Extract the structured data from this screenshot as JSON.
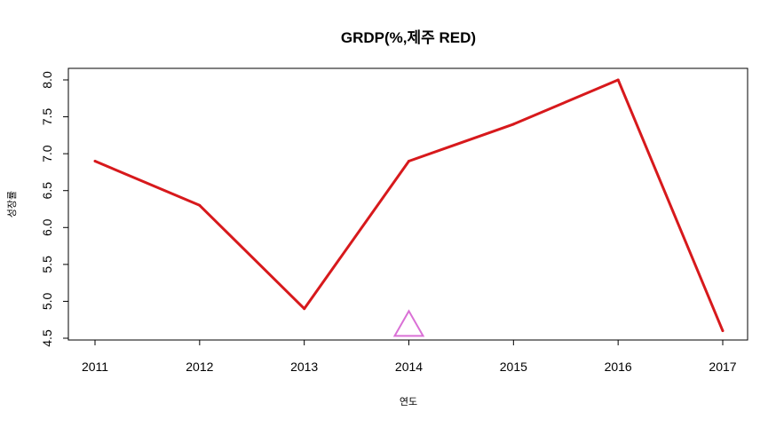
{
  "chart_data": {
    "type": "line",
    "title": "GRDP(%,제주 RED)",
    "xlabel": "연도",
    "ylabel": "성장률",
    "x": [
      2011,
      2012,
      2013,
      2014,
      2015,
      2016,
      2017
    ],
    "series": [
      {
        "values": [
          6.9,
          6.3,
          4.9,
          6.9,
          7.4,
          8.0,
          4.6
        ],
        "color": "#d7191c"
      }
    ],
    "marker": {
      "x": 2014,
      "y": 4.7,
      "shape": "triangle",
      "color": "#da70d6"
    },
    "xlim": [
      2010.99,
      2017.01
    ],
    "ylim": [
      4.5,
      8.0
    ],
    "y_ticks": [
      "4.5",
      "5.0",
      "5.5",
      "6.0",
      "6.5",
      "7.0",
      "7.5",
      "8.0"
    ],
    "x_ticks": [
      "2011",
      "2012",
      "2013",
      "2014",
      "2015",
      "2016",
      "2017"
    ],
    "grid": false,
    "legend": "none"
  }
}
